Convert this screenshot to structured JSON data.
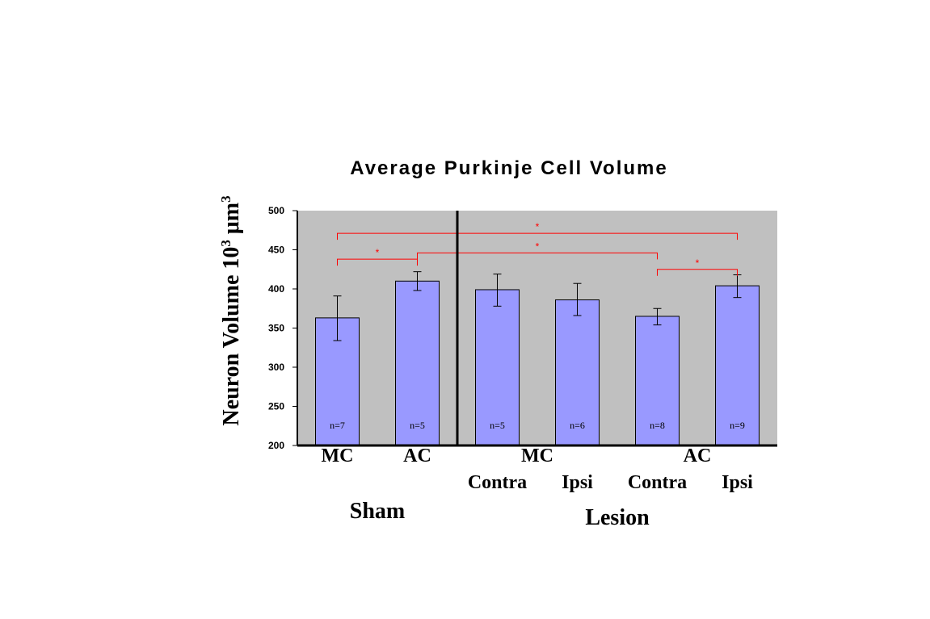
{
  "chart_data": {
    "type": "bar",
    "title": "Average Purkinje Cell Volume",
    "ylabel": "Neuron Volume 10",
    "ylabel_exp": "3",
    "ylabel_unit": " μm",
    "ylabel_unit_exp": "3",
    "ylim": [
      200,
      500
    ],
    "yticks": [
      "200",
      "250",
      "300",
      "350",
      "400",
      "450",
      "500"
    ],
    "grid": false,
    "colors": {
      "plot_bg": "#c0c0c0",
      "bar": "#9999ff",
      "sig": "#ff0000"
    },
    "bars": [
      {
        "value": 363,
        "err_high": 391,
        "err_low": 334,
        "n": "n=7"
      },
      {
        "value": 410,
        "err_high": 422,
        "err_low": 398,
        "n": "n=5"
      },
      {
        "value": 399,
        "err_high": 419,
        "err_low": 378,
        "n": "n=5"
      },
      {
        "value": 386,
        "err_high": 407,
        "err_low": 366,
        "n": "n=6"
      },
      {
        "value": 365,
        "err_high": 375,
        "err_low": 354,
        "n": "n=8"
      },
      {
        "value": 404,
        "err_high": 418,
        "err_low": 389,
        "n": "n=9"
      }
    ],
    "category_labels": [
      {
        "text": "MC",
        "row": 1,
        "at_bar": 0
      },
      {
        "text": "AC",
        "row": 1,
        "at_bar": 1
      },
      {
        "text": "MC",
        "row": 1,
        "at_bar": 2.5
      },
      {
        "text": "AC",
        "row": 1,
        "at_bar": 4.5
      },
      {
        "text": "Contra",
        "row": 2,
        "at_bar": 2
      },
      {
        "text": "Ipsi",
        "row": 2,
        "at_bar": 3
      },
      {
        "text": "Contra",
        "row": 2,
        "at_bar": 4
      },
      {
        "text": "Ipsi",
        "row": 2,
        "at_bar": 5
      }
    ],
    "groups": [
      {
        "name": "Sham",
        "bars": [
          0,
          1
        ]
      },
      {
        "name": "Lesion",
        "bars": [
          2,
          5
        ]
      }
    ],
    "separator_after_bar": 1,
    "significance": [
      {
        "from": 0,
        "to": 5,
        "y": 471,
        "label": "*"
      },
      {
        "from": 1,
        "to": 4,
        "y": 446,
        "label": "*"
      },
      {
        "from": 0,
        "to": 1,
        "y": 438,
        "label": "*"
      },
      {
        "from": 4,
        "to": 5,
        "y": 425,
        "label": "*"
      }
    ]
  }
}
